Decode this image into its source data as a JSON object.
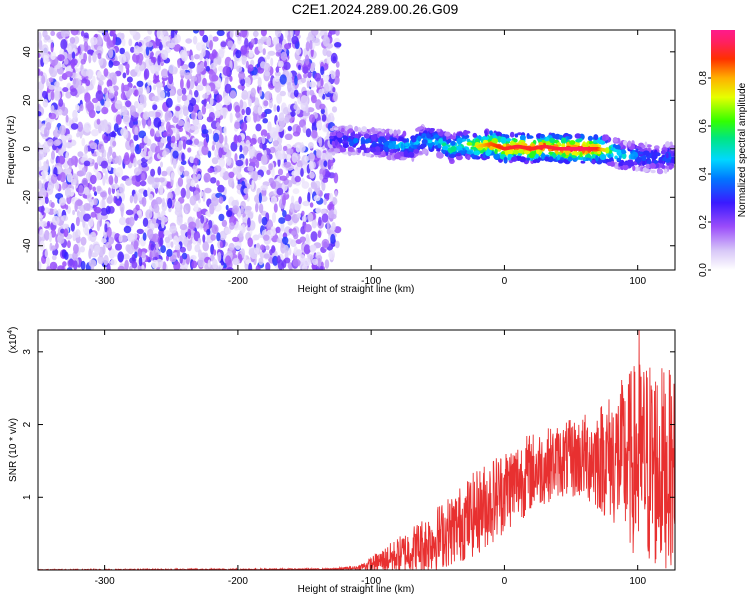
{
  "title": "C2E1.2024.289.00.26.G09",
  "chart_data": [
    {
      "type": "heatmap",
      "xlabel": "Height of straight line (km)",
      "ylabel": "Frequency (Hz)",
      "xlim": [
        -350,
        128
      ],
      "ylim": [
        -50,
        49
      ],
      "xticks": [
        -300,
        -200,
        -100,
        0,
        100
      ],
      "yticks": [
        -40,
        -20,
        0,
        20,
        40
      ],
      "colorbar": {
        "label": "Normalized spectral amplitude",
        "range": [
          0.0,
          1.0
        ],
        "ticks": [
          0.0,
          0.2,
          0.4,
          0.6,
          0.8
        ],
        "colormap": "rainbow (white-violet-blue-cyan-green-yellow-red-magenta)"
      },
      "noise_region": {
        "x_range": [
          -350,
          -125
        ],
        "level": "low (0.0-0.2)"
      },
      "signal_track": {
        "x": [
          -130,
          -110,
          -90,
          -70,
          -60,
          -50,
          -40,
          -30,
          -20,
          -10,
          0,
          10,
          20,
          30,
          40,
          50,
          60,
          70,
          80,
          90,
          100,
          110,
          120,
          128
        ],
        "freq": [
          4,
          3,
          2,
          1,
          4,
          3,
          0,
          2,
          1,
          2,
          0,
          1,
          0,
          1,
          0,
          0,
          0,
          0,
          -1,
          -3,
          -3,
          -4,
          -4,
          -3
        ],
        "amplitude": [
          0.3,
          0.35,
          0.4,
          0.45,
          0.45,
          0.5,
          0.55,
          0.6,
          0.75,
          0.85,
          0.9,
          0.92,
          0.9,
          0.92,
          0.92,
          0.95,
          0.95,
          0.9,
          0.6,
          0.45,
          0.4,
          0.35,
          0.35,
          0.35
        ]
      }
    },
    {
      "type": "line",
      "xlabel": "Height of straight line (km)",
      "ylabel": "SNR (10 * v/v)",
      "multiplier": "(x10",
      "multiplier_exp": "4",
      "multiplier_close": ")",
      "xlim": [
        -350,
        128
      ],
      "ylim": [
        0,
        3.3
      ],
      "xticks": [
        -300,
        -200,
        -100,
        0,
        100
      ],
      "yticks": [
        1,
        2,
        3
      ],
      "color": "#e83030",
      "envelope": {
        "x": [
          -350,
          -130,
          -110,
          -100,
          -80,
          -60,
          -40,
          -20,
          0,
          20,
          40,
          60,
          80,
          100,
          110,
          120,
          128
        ],
        "mean": [
          0.0,
          0.01,
          0.03,
          0.08,
          0.2,
          0.35,
          0.55,
          0.8,
          1.1,
          1.35,
          1.5,
          1.55,
          1.55,
          1.5,
          1.45,
          1.4,
          1.4
        ],
        "spread": [
          0.01,
          0.01,
          0.03,
          0.1,
          0.25,
          0.4,
          0.5,
          0.6,
          0.6,
          0.55,
          0.5,
          0.6,
          0.9,
          1.4,
          1.5,
          1.4,
          1.3
        ],
        "peak": {
          "x": 101,
          "y": 3.3
        }
      }
    }
  ]
}
